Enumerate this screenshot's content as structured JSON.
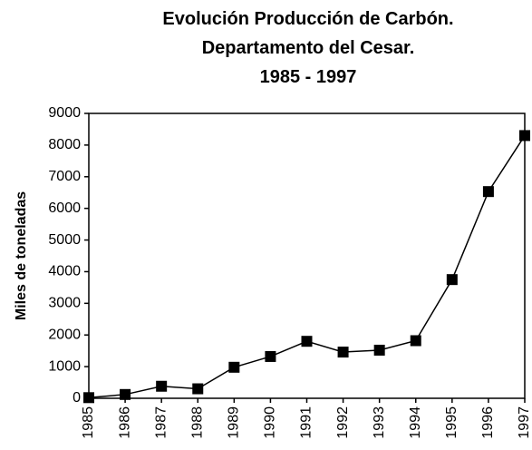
{
  "chart_data": {
    "type": "line",
    "title": [
      "Evolución Producción de Carbón.",
      "Departamento del Cesar.",
      "1985 - 1997"
    ],
    "y_label": "Miles de toneladas",
    "categories": [
      "1985",
      "1986",
      "1987",
      "1988",
      "1989",
      "1990",
      "1991",
      "1992",
      "1993",
      "1994",
      "1995",
      "1996",
      "1997"
    ],
    "values": [
      20,
      120,
      380,
      300,
      980,
      1320,
      1800,
      1460,
      1520,
      1820,
      3750,
      6530,
      8300
    ],
    "color": "#000000",
    "ylim": [
      0,
      9000
    ],
    "yticks": [
      0,
      1000,
      2000,
      3000,
      4000,
      5000,
      6000,
      7000,
      8000,
      9000
    ],
    "grid": false
  }
}
